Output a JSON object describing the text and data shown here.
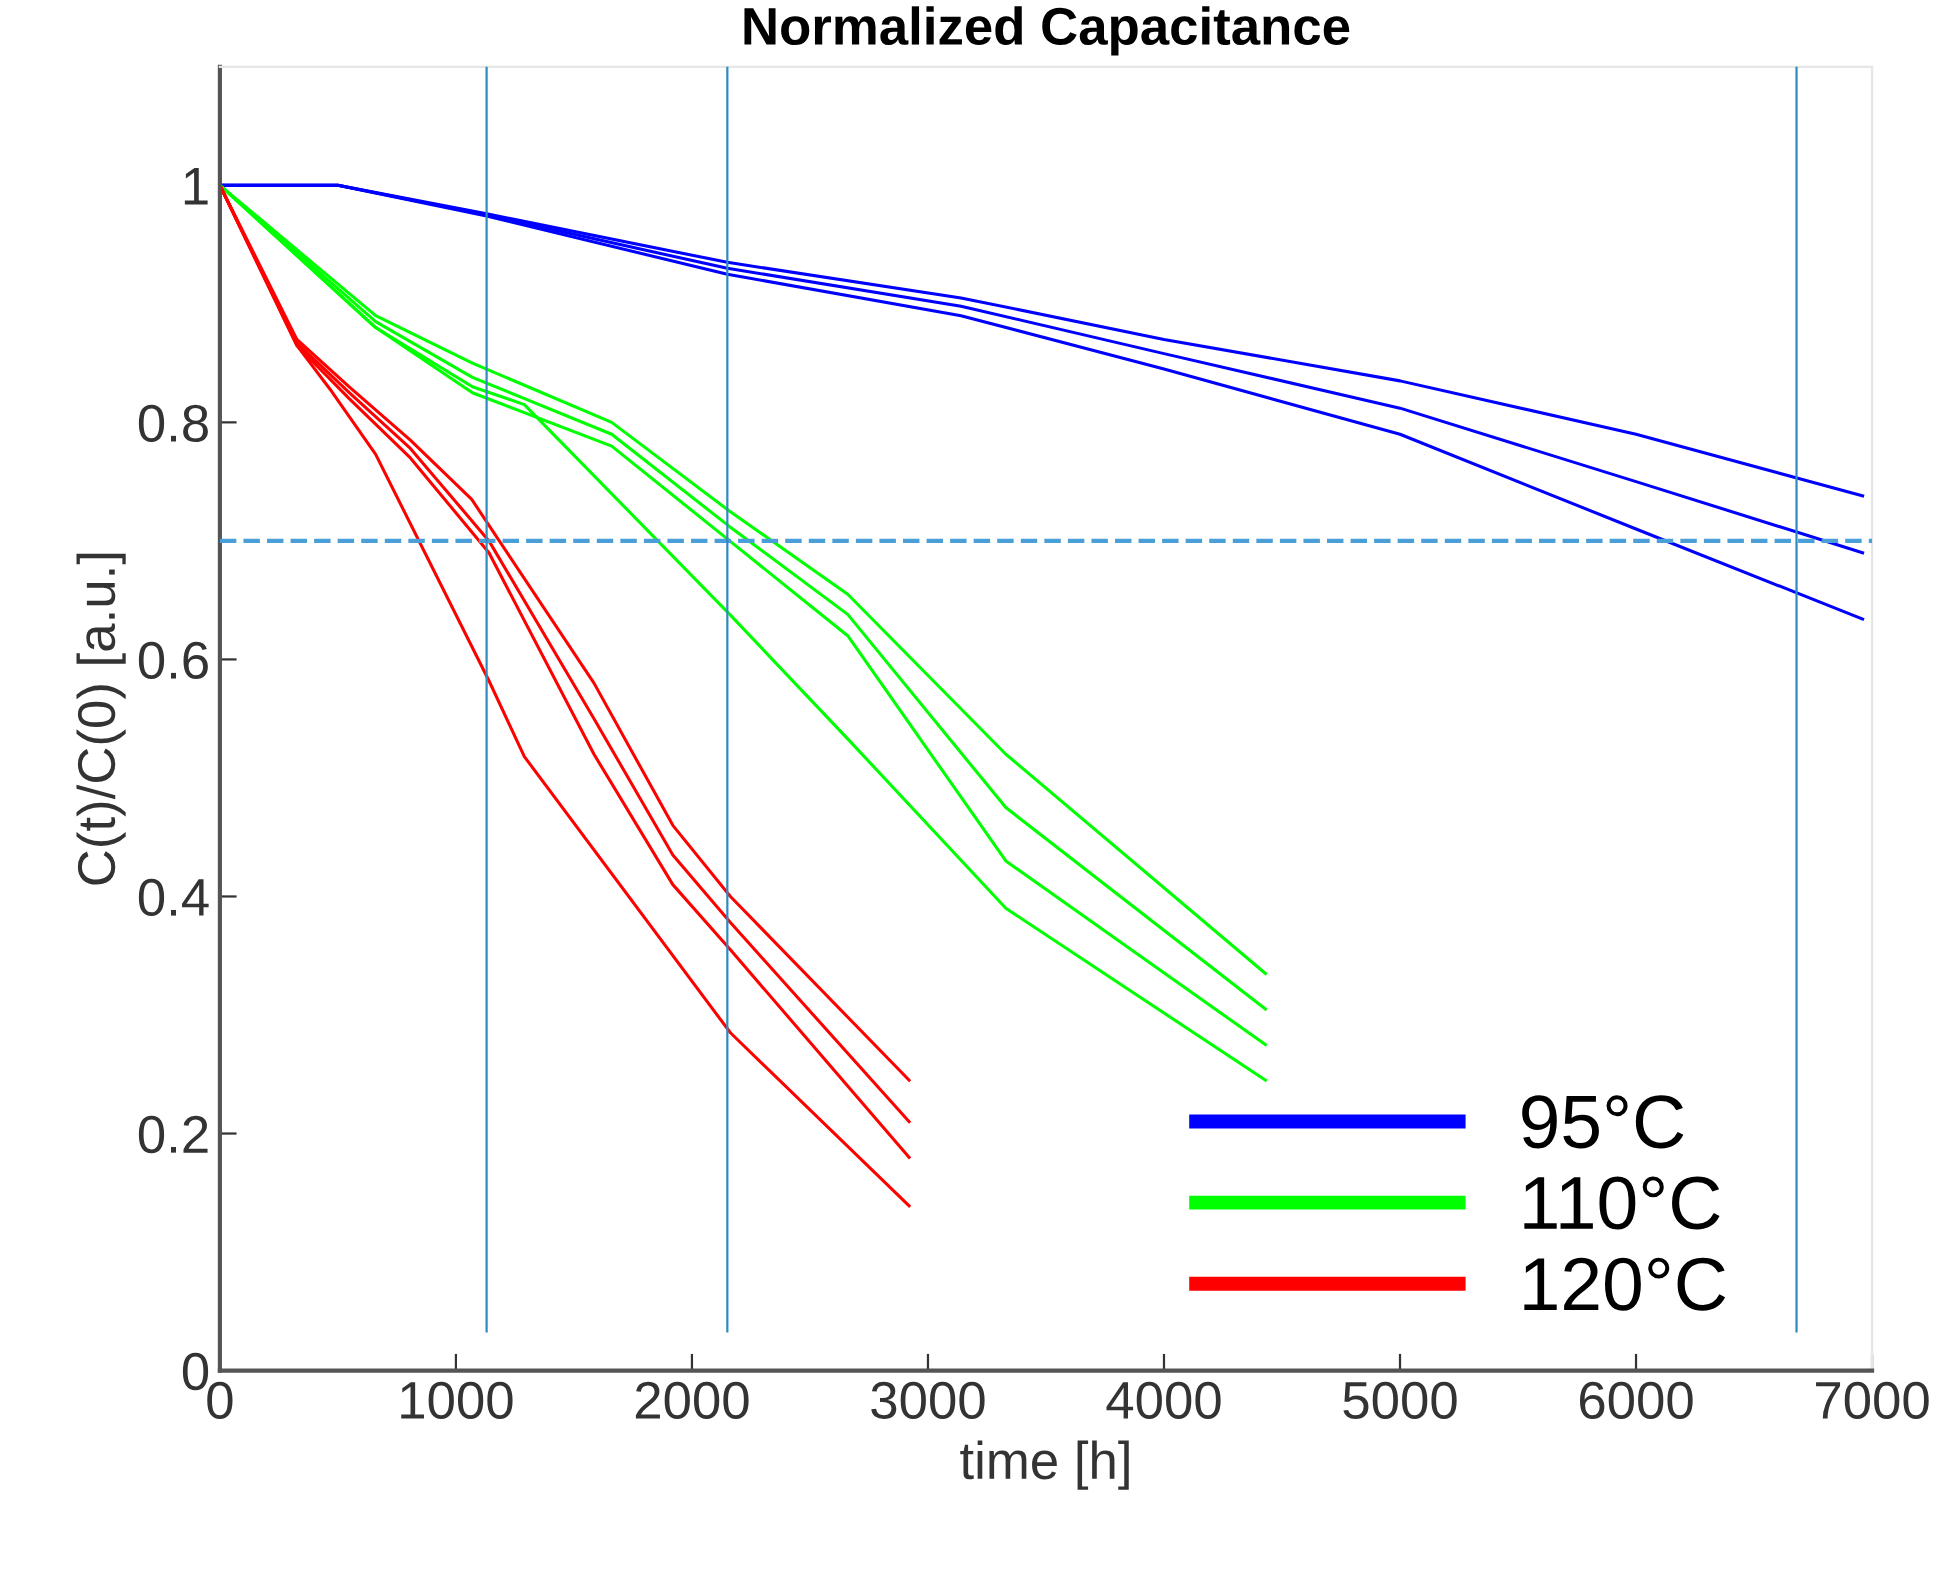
{
  "chart_data": {
    "type": "line",
    "title": "Normalized Capacitance",
    "xlabel": "time [h]",
    "ylabel": "C(t)/C(0) [a.u.]",
    "xlim": [
      0,
      7000
    ],
    "ylim": [
      0,
      1.1
    ],
    "xticks": [
      0,
      1000,
      2000,
      3000,
      4000,
      5000,
      6000,
      7000
    ],
    "yticks": [
      0,
      0.2,
      0.4,
      0.6,
      0.8,
      1
    ],
    "grid": false,
    "legend": "bottom right",
    "marker": "none",
    "line_style": "solid",
    "series": [
      {
        "name": "95°C",
        "color": "#0000ff",
        "x": [
          0,
          500,
          1130,
          2150,
          3140,
          4000,
          5000,
          6000,
          6960
        ],
        "values": [
          1,
          1,
          0.976,
          0.935,
          0.905,
          0.87,
          0.835,
          0.79,
          0.738
        ]
      },
      {
        "color": "#0000ff",
        "x": [
          0,
          500,
          1130,
          2150,
          3140,
          4000,
          5000,
          6000,
          6960
        ],
        "values": [
          1,
          1,
          0.975,
          0.93,
          0.898,
          0.858,
          0.812,
          0.75,
          0.69
        ]
      },
      {
        "color": "#0000ff",
        "x": [
          0,
          500,
          1130,
          2150,
          3140,
          4000,
          5000,
          6000,
          6960
        ],
        "values": [
          1,
          1,
          0.974,
          0.925,
          0.89,
          0.845,
          0.79,
          0.71,
          0.634
        ]
      },
      {
        "name": "110°C",
        "color": "#00ff00",
        "x": [
          0,
          660,
          1070,
          1660,
          2160,
          2660,
          3330,
          4430
        ],
        "values": [
          1,
          0.89,
          0.85,
          0.8,
          0.725,
          0.655,
          0.52,
          0.335
        ]
      },
      {
        "color": "#00ff00",
        "x": [
          0,
          660,
          1070,
          1660,
          2160,
          2660,
          3330,
          4430
        ],
        "values": [
          1,
          0.885,
          0.838,
          0.79,
          0.712,
          0.638,
          0.475,
          0.305
        ]
      },
      {
        "color": "#00ff00",
        "x": [
          0,
          660,
          1070,
          1660,
          2160,
          2660,
          3330,
          4430
        ],
        "values": [
          1,
          0.88,
          0.825,
          0.78,
          0.7,
          0.62,
          0.43,
          0.275
        ]
      },
      {
        "color": "#00ff00",
        "x": [
          0,
          660,
          1070,
          1290,
          2160,
          2660,
          3330,
          4430
        ],
        "values": [
          1,
          0.88,
          0.83,
          0.815,
          0.638,
          0.533,
          0.39,
          0.245
        ]
      },
      {
        "name": "120°C",
        "color": "#ff0000",
        "x": [
          0,
          326,
          548,
          807,
          1067,
          1585,
          1919,
          2163,
          2920
        ],
        "values": [
          1,
          0.87,
          0.83,
          0.785,
          0.735,
          0.58,
          0.46,
          0.4,
          0.245
        ]
      },
      {
        "color": "#ff0000",
        "x": [
          0,
          326,
          548,
          807,
          1140,
          1585,
          1919,
          2163,
          2920
        ],
        "values": [
          1,
          0.867,
          0.825,
          0.778,
          0.7,
          0.55,
          0.435,
          0.378,
          0.21
        ]
      },
      {
        "color": "#ff0000",
        "x": [
          0,
          326,
          548,
          807,
          1140,
          1585,
          1919,
          2163,
          2920
        ],
        "values": [
          1,
          0.865,
          0.82,
          0.77,
          0.69,
          0.52,
          0.41,
          0.355,
          0.18
        ]
      },
      {
        "color": "#ff0000",
        "x": [
          0,
          326,
          474,
          660,
          1140,
          1290,
          2163,
          2920
        ],
        "values": [
          1,
          0.865,
          0.826,
          0.773,
          0.582,
          0.518,
          0.285,
          0.139
        ]
      }
    ],
    "ref_lines": [
      {
        "axis": "y",
        "value": 0.7,
        "color": "#4a9fd8",
        "line_style": "dashed"
      },
      {
        "axis": "x",
        "value": 1130,
        "color": "#2e8bc0",
        "line_style": "solid"
      },
      {
        "axis": "x",
        "value": 2150,
        "color": "#2e8bc0",
        "line_style": "solid"
      },
      {
        "axis": "x",
        "value": 6680,
        "color": "#2e8bc0",
        "line_style": "solid"
      }
    ]
  }
}
